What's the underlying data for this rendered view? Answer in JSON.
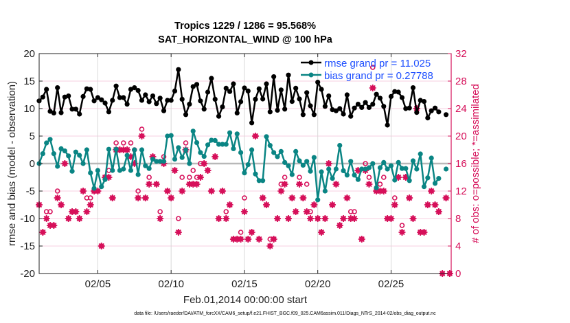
{
  "chart_data": {
    "type": "line",
    "title": [
      "Tropics 1229 / 1286 = 95.568%",
      "SAT_HORIZONTAL_WIND @ 100 hPa"
    ],
    "xlabel": "Feb.01,2014 00:00:00 start",
    "ylabel": "rmse and bias (model - observation)",
    "ylabel_right": "# of obs: o=possible; *=assimilated",
    "footnote": "data file: /Users/raeder/DAI/ATM_forcXX/CAM6_setup/f.e21.FHIST_BGC.f09_025.CAM6assim.011/Diags_NTrS_2014-02/obs_diag_output.nc",
    "xlim": [
      1,
      29.1
    ],
    "ylim": [
      -20,
      20
    ],
    "ylim_right": [
      0,
      32
    ],
    "x_start_day": 1,
    "x_step_days": 0.25,
    "xticks": [
      5,
      10,
      15,
      20,
      25
    ],
    "xtick_labels": [
      "02/05",
      "02/10",
      "02/15",
      "02/20",
      "02/25"
    ],
    "yticks": [
      -20,
      -15,
      -10,
      -5,
      0,
      5,
      10,
      15,
      20
    ],
    "yticks_right": [
      0,
      4,
      8,
      12,
      16,
      20,
      24,
      28,
      32
    ],
    "grid": true,
    "legend": {
      "placement": "top-right",
      "entries": [
        "rmse grand pr = 11.025",
        "bias grand pr = 0.27788"
      ]
    },
    "colors": {
      "rmse": "#000000",
      "bias": "#0a8584",
      "obs": "#d6105a",
      "grid_h": "#f7cfe0",
      "grid_v": "#d8d8d8",
      "zero": "#b8b8b8",
      "legend_text": "#1f50ff"
    },
    "series": [
      {
        "name": "rmse",
        "values": [
          11.4,
          12.1,
          13.5,
          9.5,
          9.2,
          13.8,
          9.25,
          12.1,
          12.3,
          9.9,
          9.9,
          9.0,
          12.2,
          13.6,
          13.5,
          11.4,
          12.0,
          11.6,
          11.0,
          9.4,
          11.5,
          14.1,
          12.0,
          12.0,
          10.8,
          13.5,
          13.8,
          13.3,
          11.5,
          12.5,
          11.25,
          12.3,
          10.9,
          11.9,
          9.6,
          11.5,
          11.5,
          13.2,
          17.1,
          11.7,
          8.9,
          10.8,
          14.0,
          14.4,
          11.4,
          9.9,
          13.0,
          15.5,
          11.7,
          8.6,
          10.3,
          13.7,
          13.1,
          14.5,
          9.2,
          11.25,
          13.75,
          13.2,
          7.4,
          11.7,
          13.6,
          11.75,
          14.5,
          9.4,
          15.8,
          9.7,
          13.4,
          9.9,
          16.1,
          11.3,
          13.7,
          11.75,
          8.9,
          12.9,
          10.5,
          8.9,
          14.8,
          13.5,
          10.4,
          12.3,
          9.8,
          9.6,
          10.0,
          9.0,
          12.5,
          8.6,
          10.1,
          10.8,
          10.2,
          11.1,
          10.2,
          10.8,
          12.6,
          11.9,
          10.4,
          7.0,
          12.2,
          13.1,
          13.0,
          12.0,
          10.0,
          10.1,
          13.8,
          9.3,
          11.5,
          11.3,
          8.3,
          9.6,
          10.1,
          9.4,
          null,
          8.9,
          null
        ]
      },
      {
        "name": "bias",
        "values": [
          0,
          1.8,
          3.75,
          4.4,
          1.8,
          -0.5,
          2.7,
          2.3,
          1.4,
          -1.4,
          2.1,
          1.5,
          0,
          2.5,
          -1.7,
          -4.5,
          -1.25,
          -4.2,
          -2.9,
          2.6,
          -1.25,
          2.6,
          -1.25,
          -1.0,
          1.5,
          -1.25,
          2.5,
          -2.0,
          2.5,
          -0.4,
          -0.9,
          0.8,
          0.4,
          0.4,
          0.4,
          5.0,
          5.1,
          0.8,
          2.9,
          1.1,
          2.5,
          0,
          5.9,
          3.8,
          2.0,
          1.3,
          3.4,
          4.25,
          4.2,
          3.5,
          3.5,
          3.5,
          5.6,
          2.7,
          5.4,
          2.0,
          -1.7,
          -0.2,
          2.5,
          -1.9,
          -3.1,
          -3.1,
          4.9,
          3.3,
          2.0,
          1.25,
          2.2,
          0.2,
          -0.4,
          -2.0,
          2.2,
          0.5,
          -0.3,
          0.4,
          -1.4,
          1.1,
          -6.6,
          -1.5,
          -5.0,
          -1.0,
          -2.7,
          -1.0,
          3.3,
          -1.3,
          -2.1,
          0.4,
          -2.1,
          -2.9,
          -1.0,
          -1.0,
          -0.75,
          0,
          -4.4,
          -0.75,
          0.2,
          -1.0,
          -0.4,
          -3.0,
          0.2,
          -0.9,
          -0.9,
          -3.1,
          0.5,
          -1.0,
          1.75,
          -4.2,
          -2.6,
          1.0,
          -3.6,
          -2.7,
          null,
          -1.0,
          null
        ]
      },
      {
        "name": "possible",
        "axis": "right",
        "values": [
          10,
          6,
          9,
          9,
          7,
          12,
          10,
          16,
          8,
          9,
          9,
          8,
          12,
          11,
          11,
          12,
          12,
          4,
          14,
          15,
          11,
          19,
          18,
          19,
          18,
          19,
          18,
          12,
          21,
          11,
          14,
          17,
          13,
          9,
          17,
          12,
          11,
          15,
          8,
          14,
          19,
          14,
          15,
          14,
          16,
          16,
          15,
          12,
          17,
          8,
          12,
          9,
          10,
          5,
          5,
          6,
          11,
          5,
          6,
          20,
          5,
          11,
          10,
          5,
          5,
          8,
          13,
          14,
          8,
          11,
          9,
          14,
          11,
          13,
          9,
          10,
          8,
          6,
          8,
          16,
          10,
          13,
          7,
          8,
          11,
          9,
          9,
          15,
          5,
          16,
          14,
          30,
          12,
          13,
          14,
          8,
          8,
          11,
          14,
          7,
          14,
          11,
          8,
          24,
          6,
          6,
          10,
          12,
          10,
          9,
          0,
          11,
          0
        ]
      },
      {
        "name": "assimilated",
        "axis": "right",
        "values": [
          10,
          6,
          8,
          7,
          7,
          11,
          10,
          16,
          8,
          9,
          9,
          8,
          12,
          9,
          10,
          12,
          12,
          4,
          14,
          14,
          11,
          18,
          18,
          18,
          18,
          17,
          16,
          11,
          20,
          11,
          13,
          17,
          13,
          8,
          16,
          12,
          11,
          15,
          6,
          12,
          18,
          13,
          13,
          13,
          14,
          16,
          15,
          12,
          17,
          8,
          12,
          8,
          10,
          5,
          5,
          5,
          9,
          5,
          6,
          20,
          5,
          11,
          10,
          4,
          5,
          8,
          12,
          13,
          8,
          11,
          9,
          13,
          11,
          9,
          8,
          10,
          8,
          6,
          8,
          16,
          10,
          13,
          7,
          8,
          11,
          8,
          8,
          15,
          5,
          15,
          13,
          27,
          12,
          12,
          12,
          8,
          8,
          10,
          14,
          6,
          14,
          11,
          8,
          24,
          6,
          6,
          10,
          12,
          10,
          9,
          0,
          11,
          0
        ]
      }
    ]
  }
}
